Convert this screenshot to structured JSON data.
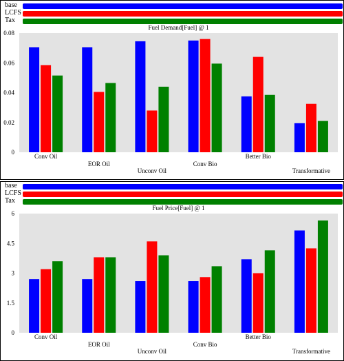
{
  "legend": [
    {
      "name": "base",
      "color": "#0000ff"
    },
    {
      "name": "LCFS",
      "color": "#ff0000"
    },
    {
      "name": "Tax",
      "color": "#008000"
    }
  ],
  "chart_data": [
    {
      "type": "bar",
      "title": "Fuel Demand[Fuel] @ 1",
      "categories": [
        "Conv Oil",
        "EOR Oil",
        "Unconv Oil",
        "Conv Bio",
        "Better Bio",
        "Transformative"
      ],
      "series": [
        {
          "name": "base",
          "values": [
            0.0705,
            0.0705,
            0.0745,
            0.075,
            0.0375,
            0.0195
          ]
        },
        {
          "name": "LCFS",
          "values": [
            0.0585,
            0.0405,
            0.028,
            0.076,
            0.064,
            0.0325
          ]
        },
        {
          "name": "Tax",
          "values": [
            0.0515,
            0.0465,
            0.044,
            0.0595,
            0.0385,
            0.021
          ]
        }
      ],
      "ylim": [
        0,
        0.08
      ],
      "yticks": [
        "0",
        "0.02",
        "0.04",
        "0.06",
        "0.08"
      ],
      "ytick_values": [
        0,
        0.02,
        0.04,
        0.06,
        0.08
      ],
      "grid": false
    },
    {
      "type": "bar",
      "title": "Fuel Price[Fuel] @ 1",
      "categories": [
        "Conv Oil",
        "EOR Oil",
        "Unconv Oil",
        "Conv Bio",
        "Better Bio",
        "Transformative"
      ],
      "series": [
        {
          "name": "base",
          "values": [
            2.7,
            2.7,
            2.6,
            2.6,
            3.7,
            5.15
          ]
        },
        {
          "name": "LCFS",
          "values": [
            3.2,
            3.8,
            4.6,
            2.8,
            3.0,
            4.25
          ]
        },
        {
          "name": "Tax",
          "values": [
            3.6,
            3.8,
            3.9,
            3.35,
            4.15,
            5.65
          ]
        }
      ],
      "ylim": [
        0,
        6
      ],
      "yticks": [
        "0",
        "1.5",
        "3",
        "4.5",
        "6"
      ],
      "ytick_values": [
        0,
        1.5,
        3,
        4.5,
        6
      ],
      "grid": false
    }
  ]
}
